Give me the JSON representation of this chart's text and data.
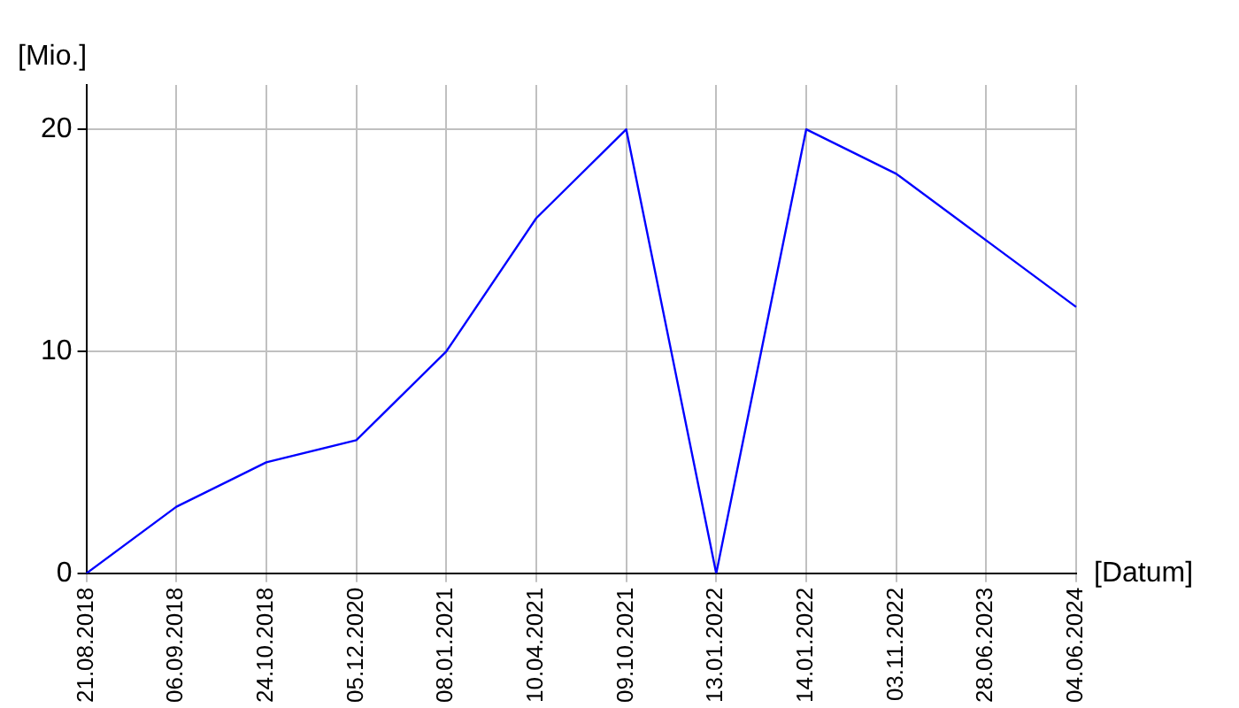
{
  "chart_data": {
    "type": "line",
    "xlabel": "[Datum]",
    "ylabel": "[Mio.]",
    "categories": [
      "21.08.2018",
      "06.09.2018",
      "24.10.2018",
      "05.12.2020",
      "08.01.2021",
      "10.04.2021",
      "09.10.2021",
      "13.01.2022",
      "14.01.2022",
      "03.11.2022",
      "28.06.2023",
      "04.06.2024"
    ],
    "series": [
      {
        "color": "#0000ff",
        "values": [
          0,
          3,
          5,
          6,
          10,
          16,
          20,
          0,
          20,
          18,
          15,
          12
        ]
      }
    ],
    "ylim": [
      0,
      22
    ],
    "yticks": [
      0,
      10,
      20
    ],
    "grid": true,
    "legend": false,
    "marker": "none",
    "line_style": "solid"
  }
}
